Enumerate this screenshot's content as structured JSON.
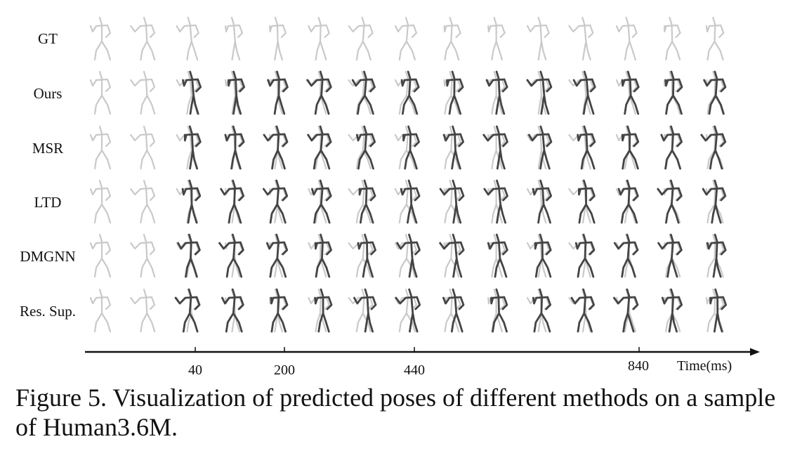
{
  "rows": [
    {
      "label": "GT"
    },
    {
      "label": "Ours"
    },
    {
      "label": "MSR"
    },
    {
      "label": "LTD"
    },
    {
      "label": "DMGNN"
    },
    {
      "label": "Res. Sup."
    }
  ],
  "frames_per_row": 15,
  "observed_frames": 2,
  "axis": {
    "ticks": [
      "40",
      "200",
      "440",
      "840"
    ],
    "title": "Time(ms)"
  },
  "caption": "Figure 5. Visualization of predicted poses of different methods on a sample of Human3.6M.",
  "colors": {
    "ground_truth_pose": "#c9c9c9",
    "predicted_pose": "#444444",
    "axis": "#111111"
  }
}
